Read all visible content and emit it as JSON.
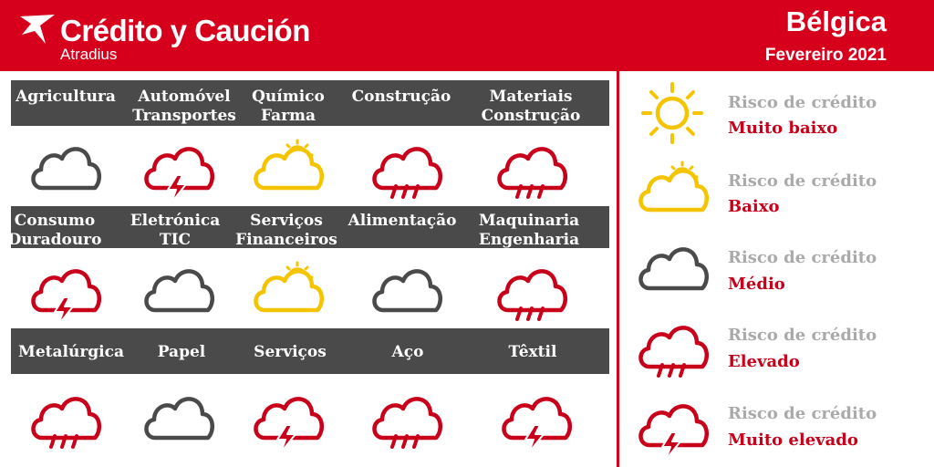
{
  "header": {
    "brand_name": "Crédito y Caución",
    "brand_sub": "Atradius",
    "country": "Bélgica",
    "period": "Fevereiro 2021"
  },
  "colors": {
    "brand_red": "#d6001c",
    "label_bar": "#4a4a4a",
    "sun_yellow": "#f5c400",
    "cloud_grey": "#4a4a4a",
    "risk_red": "#c8001a",
    "legend_grey": "#aaaaaa"
  },
  "sectors": [
    {
      "label_1": "Agricultura",
      "label_2": "",
      "risk": "medio",
      "icon": "cloud-icon"
    },
    {
      "label_1": "Automóvel",
      "label_2": "Transportes",
      "risk": "muito-elevado",
      "icon": "storm-cloud-icon"
    },
    {
      "label_1": "Químico",
      "label_2": "Farma",
      "risk": "baixo",
      "icon": "sun-cloud-icon"
    },
    {
      "label_1": "Construção",
      "label_2": "",
      "risk": "elevado",
      "icon": "rain-cloud-icon"
    },
    {
      "label_1": "Materiais",
      "label_2": "Construção",
      "risk": "elevado",
      "icon": "rain-cloud-icon"
    },
    {
      "label_1": "Consumo",
      "label_2": "Duradouro",
      "risk": "muito-elevado",
      "icon": "storm-cloud-icon"
    },
    {
      "label_1": "Eletrónica",
      "label_2": "TIC",
      "risk": "medio",
      "icon": "cloud-icon"
    },
    {
      "label_1": "Serviços",
      "label_2": "Financeiros",
      "risk": "baixo",
      "icon": "sun-cloud-icon"
    },
    {
      "label_1": "Alimentação",
      "label_2": "",
      "risk": "medio",
      "icon": "cloud-icon"
    },
    {
      "label_1": "Maquinaria",
      "label_2": "Engenharia",
      "risk": "elevado",
      "icon": "rain-cloud-icon"
    },
    {
      "label_1": "Metalúrgica",
      "label_2": "",
      "risk": "elevado",
      "icon": "rain-cloud-icon"
    },
    {
      "label_1": "Papel",
      "label_2": "",
      "risk": "medio",
      "icon": "cloud-icon"
    },
    {
      "label_1": "Serviços",
      "label_2": "",
      "risk": "muito-elevado",
      "icon": "storm-cloud-icon"
    },
    {
      "label_1": "Aço",
      "label_2": "",
      "risk": "elevado",
      "icon": "rain-cloud-icon"
    },
    {
      "label_1": "Têxtil",
      "label_2": "",
      "risk": "muito-elevado",
      "icon": "storm-cloud-icon"
    }
  ],
  "legend": [
    {
      "title": "Risco de crédito",
      "level": "Muito baixo",
      "icon": "sun-icon"
    },
    {
      "title": "Risco de crédito",
      "level": "Baixo",
      "icon": "sun-cloud-icon"
    },
    {
      "title": "Risco de crédito",
      "level": "Médio",
      "icon": "cloud-icon"
    },
    {
      "title": "Risco de crédito",
      "level": "Elevado",
      "icon": "rain-cloud-icon"
    },
    {
      "title": "Risco de crédito",
      "level": "Muito elevado",
      "icon": "storm-cloud-icon"
    }
  ]
}
